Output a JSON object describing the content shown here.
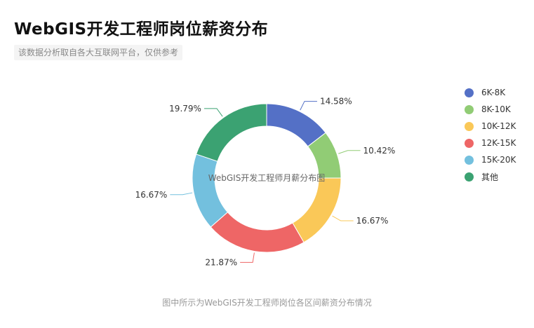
{
  "header": {
    "title": "WebGIS开发工程师岗位薪资分布",
    "subtitle": "该数据分析取自各大互联网平台，仅供参考"
  },
  "footer": {
    "note": "图中所示为WebGIS开发工程师岗位各区间薪资分布情况"
  },
  "chart_data": {
    "type": "pie",
    "variant": "donut",
    "center_label": "WebGIS开发工程师月薪分布图",
    "legend_position": "right",
    "slices": [
      {
        "name": "6K-8K",
        "value": 14.58,
        "label": "14.58%",
        "color": "#5470c6"
      },
      {
        "name": "8K-10K",
        "value": 10.42,
        "label": "10.42%",
        "color": "#91cc75"
      },
      {
        "name": "10K-12K",
        "value": 16.67,
        "label": "16.67%",
        "color": "#fac858"
      },
      {
        "name": "12K-15K",
        "value": 21.87,
        "label": "21.87%",
        "color": "#ee6666"
      },
      {
        "name": "15K-20K",
        "value": 16.67,
        "label": "16.67%",
        "color": "#73c0de"
      },
      {
        "name": "其他",
        "value": 19.79,
        "label": "19.79%",
        "color": "#3ba272"
      }
    ]
  }
}
